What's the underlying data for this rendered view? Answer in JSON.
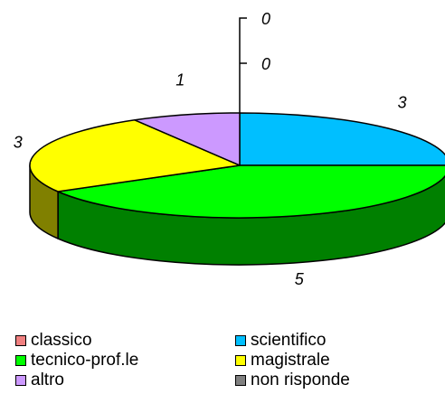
{
  "chart_data": {
    "type": "pie",
    "style": "3d",
    "categories": [
      "classico",
      "scientifico",
      "tecnico-prof.le",
      "magistrale",
      "altro",
      "non risponde"
    ],
    "values": [
      0,
      3,
      5,
      3,
      1,
      0
    ],
    "data_labels": [
      "0",
      "3",
      "5",
      "3",
      "1",
      "0"
    ],
    "colors": [
      "#F08080",
      "#00BFFF",
      "#00FF00",
      "#FFFF00",
      "#CC99FF",
      "#808080"
    ],
    "side_colors": [
      "#A05050",
      "#007FAA",
      "#008000",
      "#808000",
      "#8060A0",
      "#505050"
    ],
    "title": "",
    "legend_position": "bottom"
  }
}
